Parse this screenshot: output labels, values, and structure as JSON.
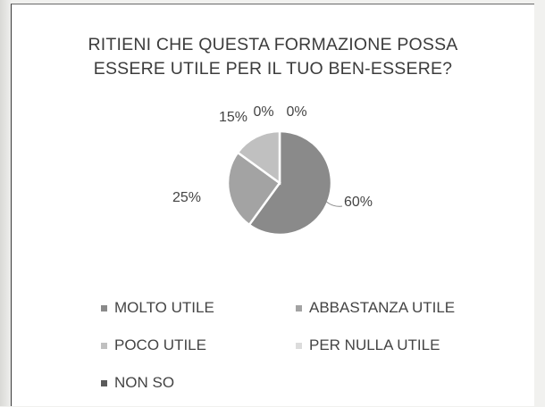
{
  "chart_data": {
    "type": "pie",
    "title_lines": [
      "RITIENI CHE QUESTA FORMAZIONE POSSA",
      "ESSERE UTILE PER IL TUO BEN-ESSERE?"
    ],
    "categories": [
      "MOLTO UTILE",
      "ABBASTANZA UTILE",
      "POCO UTILE",
      "PER NULLA UTILE",
      "NON SO"
    ],
    "values": [
      60,
      25,
      15,
      0,
      0
    ],
    "data_labels": [
      "60%",
      "25%",
      "15%",
      "0%",
      "0%"
    ],
    "colors": [
      "#8a8a8a",
      "#a3a3a3",
      "#c0c0c0",
      "#dcdcdc",
      "#5a5a5a"
    ],
    "legend_position": "bottom"
  }
}
